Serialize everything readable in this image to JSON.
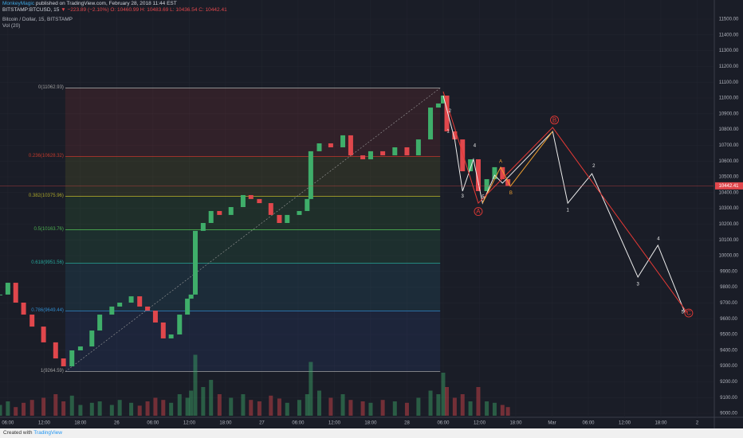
{
  "header": {
    "author": "MonkeyMagic",
    "published": "published on TradingView.com, February 28, 2018 11:44 EST",
    "symbol": "BITSTAMP:BTCUSD, 15",
    "change": "▼ −223.89 (−2.10%)",
    "ohlc": "O: 10460.99 H: 10483.69 L: 10436.54 C: 10442.41",
    "legend": "Bitcoin / Dollar, 15, BITSTAMP",
    "volume": "Vol (20)"
  },
  "footer": {
    "created": "Created with",
    "brand": "TradingView"
  },
  "chart_data": {
    "type": "candlestick",
    "x": [
      -1.3,
      0,
      1.3,
      2.6,
      4,
      5.9,
      7.9,
      9.2,
      10.6,
      12,
      13.9,
      15.2,
      17.2,
      18.5,
      20.4,
      21.8,
      23.1,
      24.4,
      25.7,
      27,
      28.4,
      29.7,
      30.3,
      31,
      32.3,
      33.6,
      35,
      36.9,
      38.9,
      40.2,
      41.6,
      43.5,
      44.9,
      46.2,
      48.2,
      49.5,
      50.1,
      51.5,
      53.4,
      55.4,
      56.7,
      58.7,
      60,
      62,
      64,
      66,
      67.9,
      69.9,
      71.2,
      72,
      72.6,
      73.9,
      75.2,
      76.5,
      77.8,
      79.2,
      80.5,
      81.8,
      82.7
    ],
    "values": [
      9753,
      9828,
      9702,
      9626,
      9550,
      9450,
      9348,
      9298,
      9399,
      9424,
      9525,
      9626,
      9677,
      9702,
      9742,
      9677,
      9651,
      9576,
      9475,
      9500,
      9626,
      9727,
      9753,
      10157,
      10207,
      10283,
      10258,
      10308,
      10384,
      10359,
      10333,
      10258,
      10207,
      10258,
      10283,
      10359,
      10662,
      10712,
      10687,
      10763,
      10636,
      10611,
      10662,
      10636,
      10687,
      10636,
      10737,
      10939,
      10965,
      11015,
      10788,
      10737,
      10535,
      10611,
      10409,
      10485,
      10561,
      10485,
      10442
    ],
    "up_color": "#3fae6a",
    "down_color": "#e0474c",
    "volume": {
      "values": [
        15,
        20,
        12,
        18,
        22,
        25,
        30,
        20,
        28,
        15,
        18,
        20,
        15,
        22,
        18,
        14,
        20,
        25,
        22,
        18,
        30,
        25,
        35,
        85,
        40,
        50,
        30,
        25,
        30,
        22,
        20,
        28,
        24,
        18,
        22,
        30,
        75,
        35,
        25,
        30,
        22,
        20,
        18,
        22,
        20,
        18,
        25,
        35,
        30,
        60,
        40,
        25,
        30,
        20,
        40,
        20,
        18,
        15,
        12
      ],
      "lim": [
        0,
        100
      ]
    },
    "xlim": [
      -1.3,
      116.7
    ],
    "xticks": [
      {
        "value": 0,
        "label": "06:00"
      },
      {
        "value": 6,
        "label": "12:00"
      },
      {
        "value": 12,
        "label": "18:00"
      },
      {
        "value": 18,
        "label": "26"
      },
      {
        "value": 24,
        "label": "06:00"
      },
      {
        "value": 30,
        "label": "12:00"
      },
      {
        "value": 36,
        "label": "18:00"
      },
      {
        "value": 42,
        "label": "27"
      },
      {
        "value": 48,
        "label": "06:00"
      },
      {
        "value": 54,
        "label": "12:00"
      },
      {
        "value": 60,
        "label": "18:00"
      },
      {
        "value": 66,
        "label": "28"
      },
      {
        "value": 72,
        "label": "06:00"
      },
      {
        "value": 78,
        "label": "12:00"
      },
      {
        "value": 84,
        "label": "18:00"
      },
      {
        "value": 90,
        "label": "Mar"
      },
      {
        "value": 96,
        "label": "06:00"
      },
      {
        "value": 102,
        "label": "12:00"
      },
      {
        "value": 108,
        "label": "18:00"
      },
      {
        "value": 114,
        "label": "2"
      }
    ],
    "ylim": [
      9000,
      11500
    ],
    "yticks": [
      {
        "value": 11500,
        "label": "11500.00"
      },
      {
        "value": 11400,
        "label": "11400.00"
      },
      {
        "value": 11300,
        "label": "11300.00"
      },
      {
        "value": 11200,
        "label": "11200.00"
      },
      {
        "value": 11100,
        "label": "11100.00"
      },
      {
        "value": 11000,
        "label": "11000.00"
      },
      {
        "value": 10900,
        "label": "10900.00"
      },
      {
        "value": 10800,
        "label": "10800.00"
      },
      {
        "value": 10700,
        "label": "10700.00"
      },
      {
        "value": 10600,
        "label": "10600.00"
      },
      {
        "value": 10500,
        "label": "10500.00"
      },
      {
        "value": 10400,
        "label": "10400.00"
      },
      {
        "value": 10300,
        "label": "10300.00"
      },
      {
        "value": 10200,
        "label": "10200.00"
      },
      {
        "value": 10100,
        "label": "10100.00"
      },
      {
        "value": 10000,
        "label": "10000.00"
      },
      {
        "value": 9900,
        "label": "9900.00"
      },
      {
        "value": 9800,
        "label": "9800.00"
      },
      {
        "value": 9700,
        "label": "9700.00"
      },
      {
        "value": 9600,
        "label": "9600.00"
      },
      {
        "value": 9500,
        "label": "9500.00"
      },
      {
        "value": 9400,
        "label": "9400.00"
      },
      {
        "value": 9300,
        "label": "9300.00"
      },
      {
        "value": 9200,
        "label": "9200.00"
      },
      {
        "value": 9100,
        "label": "9100.00"
      },
      {
        "value": 9000,
        "label": "9000.00"
      }
    ],
    "last_price": {
      "value": 10442.41,
      "label": "10442.41",
      "color": "#e0474c"
    },
    "fib_range": [
      9.5,
      71.5
    ],
    "fib": [
      {
        "value": 11062.93,
        "label": "0(11062.93)",
        "color": "#9e9e9e",
        "fill": "#b03a3a"
      },
      {
        "value": 10628.32,
        "label": "0.236(10628.32)",
        "color": "#c0392b",
        "fill": "#8a8a2a"
      },
      {
        "value": 10375.96,
        "label": "0.382(10375.96)",
        "color": "#a7a22a",
        "fill": "#3f8f3f"
      },
      {
        "value": 10163.76,
        "label": "0.5(10163.76)",
        "color": "#4caf50",
        "fill": "#2f8f5a"
      },
      {
        "value": 9951.56,
        "label": "0.618(9951.56)",
        "color": "#26a69a",
        "fill": "#2a7f9a"
      },
      {
        "value": 9649.44,
        "label": "0.786(9649.44)",
        "color": "#2f88c8",
        "fill": "#2f4f9f"
      },
      {
        "value": 9264.59,
        "label": "1(9264.59)",
        "color": "#9e9e9e",
        "fill": "#2f4f9f"
      }
    ],
    "projections": [
      {
        "color": "#ededed",
        "x": [
          72,
          73.9,
          75.2,
          77.0,
          78.5,
          80.5,
          81.8,
          90.1,
          92.6,
          96.6,
          104.2,
          107.5,
          112
        ],
        "y": [
          11015,
          10737,
          10409,
          10611,
          10333,
          10510,
          10460,
          10788,
          10333,
          10520,
          9864,
          10066,
          9636
        ]
      },
      {
        "color": "#f0a030",
        "x": [
          78.5,
          81.5,
          83.1,
          90.1
        ],
        "y": [
          10333,
          10561,
          10440,
          10788
        ]
      },
      {
        "color": "#e53935",
        "x": [
          72,
          77.8,
          90.1,
          112.4
        ],
        "y": [
          11040,
          10333,
          10813,
          9636
        ]
      }
    ],
    "annotations": [
      {
        "text": "A",
        "x": 77.8,
        "y": 10280,
        "color": "#e53935",
        "circled": true
      },
      {
        "text": "B",
        "x": 90.4,
        "y": 10860,
        "color": "#e53935",
        "circled": true
      },
      {
        "text": "C",
        "x": 112.6,
        "y": 9636,
        "color": "#e53935",
        "circled": true
      },
      {
        "text": "1",
        "x": 92.6,
        "y": 10290,
        "color": "#ededed",
        "circled": false
      },
      {
        "text": "2",
        "x": 96.9,
        "y": 10570,
        "color": "#ededed",
        "circled": false
      },
      {
        "text": "3",
        "x": 104.2,
        "y": 9820,
        "color": "#ededed",
        "circled": false
      },
      {
        "text": "4",
        "x": 107.6,
        "y": 10110,
        "color": "#ededed",
        "circled": false
      },
      {
        "text": "5",
        "x": 111.6,
        "y": 9645,
        "color": "#ededed",
        "circled": false
      },
      {
        "text": "2",
        "x": 73.1,
        "y": 10920,
        "color": "#ededed",
        "circled": false
      },
      {
        "text": "1",
        "x": 72.8,
        "y": 10790,
        "color": "#ededed",
        "circled": false
      },
      {
        "text": "3",
        "x": 75.2,
        "y": 10380,
        "color": "#ededed",
        "circled": false
      },
      {
        "text": "4",
        "x": 77.2,
        "y": 10700,
        "color": "#ededed",
        "circled": false
      },
      {
        "text": "5",
        "x": 78.6,
        "y": 10375,
        "color": "#ededed",
        "circled": false
      },
      {
        "text": "A",
        "x": 81.5,
        "y": 10600,
        "color": "#f0a030",
        "circled": false
      },
      {
        "text": "B",
        "x": 83.2,
        "y": 10400,
        "color": "#f0a030",
        "circled": false
      }
    ]
  }
}
